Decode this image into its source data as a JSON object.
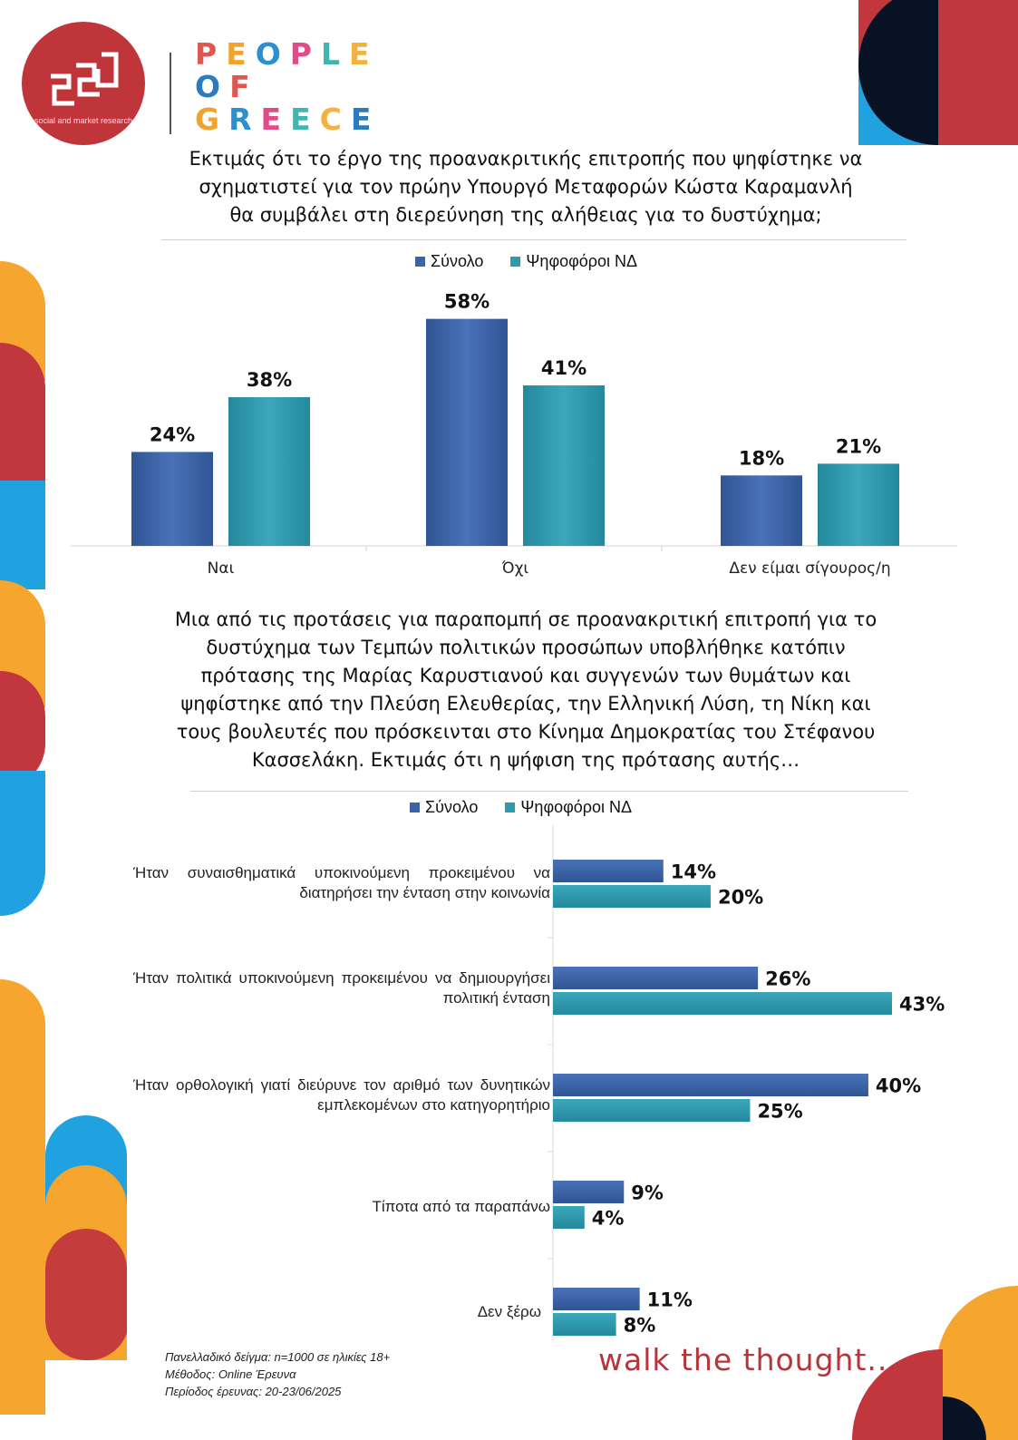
{
  "brand": {
    "logo_subtitle": "social and market research",
    "logo_mark": "sed",
    "people_of_greece_lines": [
      "PEOPLE",
      "OF",
      "GREECE"
    ],
    "letter_colors": [
      "#e0574f",
      "#f0a32d",
      "#2c8fd0",
      "#e34a88",
      "#3fb6b0",
      "#f4b13c",
      "#2a7bc0"
    ],
    "tagline": "walk the thought..."
  },
  "colors": {
    "total": "#3d63a5",
    "nd": "#2f9aae",
    "orange": "#f6a62e",
    "red": "#c1373d",
    "blue": "#1fa2df",
    "navy": "#081225"
  },
  "question1": {
    "title_lines": [
      "Εκτιμάς ότι το έργο της προανακριτικής επιτροπής που ψηφίστηκε να",
      "σχηματιστεί για τον πρώην Υπουργό Μεταφορών Κώστα Καραμανλή",
      "θα συμβάλει στη διερεύνηση της αλήθειας για το δυστύχημα;"
    ]
  },
  "question2": {
    "title_lines": [
      "Μια από τις προτάσεις για παραπομπή σε προανακριτική επιτροπή για το",
      "δυστύχημα των Τεμπών πολιτικών προσώπων υποβλήθηκε κατόπιν",
      "πρότασης της Μαρίας Καρυστιανού και συγγενών των θυμάτων και",
      "ψηφίστηκε από την Πλεύση Ελευθερίας, την Ελληνική Λύση, τη Νίκη και",
      "τους βουλευτές που πρόσκεινται στο Κίνημα Δημοκρατίας του Στέφανου",
      "Κασσελάκη. Εκτιμάς ότι η ψήφιση της πρότασης αυτής…"
    ]
  },
  "chart_data": [
    {
      "type": "bar",
      "orientation": "vertical",
      "title": "Εκτιμάς ότι το έργο της προανακριτικής επιτροπής που ψηφίστηκε να σχηματιστεί για τον πρώην Υπουργό Μεταφορών Κώστα Καραμανλή θα συμβάλει στη διερεύνηση της αλήθειας για το δυστύχημα;",
      "categories": [
        "Ναι",
        "Όχι",
        "Δεν είμαι σίγουρος/η"
      ],
      "series": [
        {
          "name": "Σύνολο",
          "values": [
            24,
            58,
            18
          ],
          "labels": [
            "24%",
            "58%",
            "18%"
          ]
        },
        {
          "name": "Ψηφοφόροι ΝΔ",
          "values": [
            38,
            41,
            21
          ],
          "labels": [
            "38%",
            "41%",
            "21%"
          ]
        }
      ],
      "legend": "top-center",
      "ylim": [
        0,
        60
      ],
      "grid": false
    },
    {
      "type": "bar",
      "orientation": "horizontal",
      "categories": [
        "Ήταν συναισθηματικά υποκινούμενη προκειμένου να διατηρήσει την ένταση στην κοινωνία",
        "Ήταν πολιτικά υποκινούμενη προκειμένου να δημιουργήσει πολιτική ένταση",
        "Ήταν ορθολογική γιατί διεύρυνε τον αριθμό των δυνητικών εμπλεκομένων στο κατηγορητήριο",
        "Τίποτα από τα παραπάνω",
        "Δεν ξέρω"
      ],
      "series": [
        {
          "name": "Σύνολο",
          "values": [
            14,
            26,
            40,
            9,
            11
          ],
          "labels": [
            "14%",
            "26%",
            "40%",
            "9%",
            "11%"
          ]
        },
        {
          "name": "Ψηφοφόροι ΝΔ",
          "values": [
            20,
            43,
            25,
            4,
            8
          ],
          "labels": [
            "20%",
            "43%",
            "25%",
            "4%",
            "8%"
          ]
        }
      ],
      "legend": "top-center",
      "xlim": [
        0,
        43
      ],
      "grid": false
    }
  ],
  "footnote": {
    "lines": [
      "Πανελλαδικό δείγμα: n=1000 σε ηλικίες 18+",
      "Μέθοδος: Online Έρευνα",
      "Περίοδος έρευνας: 20-23/06/2025"
    ]
  }
}
